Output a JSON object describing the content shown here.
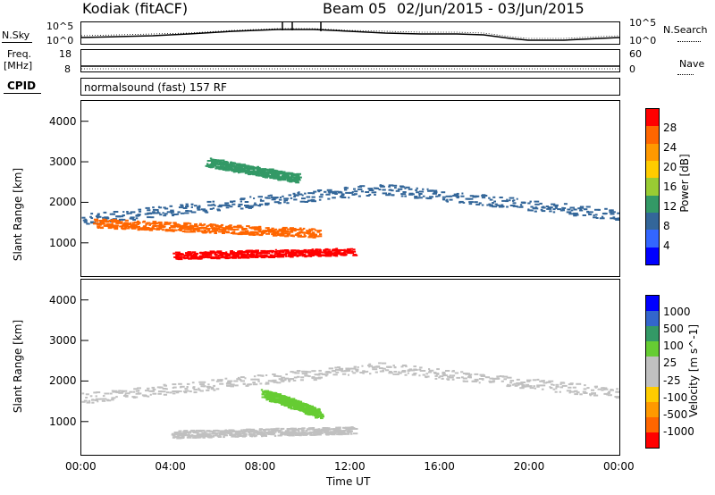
{
  "header": {
    "radar": "Kodiak (fitACF)",
    "beam": "Beam 05",
    "dates": "02/Jun/2015 - 03/Jun/2015"
  },
  "strip_labels": {
    "nsky": "N.Sky",
    "nsearch": "N.Search",
    "freq_top": "Freq.",
    "freq_unit": "[MHz]",
    "nave": "Nave",
    "cpid": "CPID",
    "cpid_value": "normalsound (fast) 157 RF",
    "noise_ticks_left": [
      "10^5",
      "10^0"
    ],
    "noise_ticks_right": [
      "10^5",
      "10^0"
    ],
    "freq_ticks_left": [
      "18",
      "8"
    ],
    "freq_ticks_right": [
      "60",
      "0"
    ]
  },
  "chart_data": [
    {
      "type": "heatmap",
      "panel": "power",
      "ylabel": "Slant Range [km]",
      "ylim": [
        180,
        4500
      ],
      "yticks": [
        "4000",
        "3000",
        "2000",
        "1000"
      ],
      "xlim": [
        0,
        24
      ],
      "colorbar_label": "Power [dB]",
      "colorbar_ticks": [
        "28",
        "24",
        "20",
        "16",
        "12",
        "8",
        "4"
      ],
      "colorbar_colors": [
        "#ff0000",
        "#ff6600",
        "#ff9900",
        "#ffcc00",
        "#99cc33",
        "#339966",
        "#336699",
        "#3366ff",
        "#0000ff"
      ],
      "regions": [
        {
          "band": "main-F",
          "t0": 0,
          "t1": 24,
          "r_start": 1600,
          "r_mid": 2350,
          "r_end": 1550,
          "color": "#336699"
        },
        {
          "band": "inner",
          "t0": 0.5,
          "t1": 10.5,
          "r_start": 1500,
          "r_end": 1250,
          "color": "#ff6600"
        },
        {
          "band": "E-region",
          "t0": 4,
          "t1": 12,
          "r_start": 700,
          "r_end": 800,
          "color": "#ff0000"
        },
        {
          "band": "upper-patch",
          "t0": 5.5,
          "t1": 9.5,
          "r_start": 3000,
          "r_end": 2600,
          "color": "#339966"
        }
      ]
    },
    {
      "type": "heatmap",
      "panel": "velocity",
      "ylabel": "Slant Range [km]",
      "ylim": [
        180,
        4500
      ],
      "yticks": [
        "4000",
        "3000",
        "2000",
        "1000"
      ],
      "xlim": [
        0,
        24
      ],
      "xlabel": "Time UT",
      "xticks": [
        "00:00",
        "04:00",
        "08:00",
        "12:00",
        "16:00",
        "20:00",
        "00:00"
      ],
      "colorbar_label": "Velocity [m s^-1]",
      "colorbar_ticks": [
        "1000",
        "500",
        "100",
        "25",
        "-25",
        "-100",
        "-500",
        "-1000"
      ],
      "colorbar_colors": [
        "#0000ff",
        "#3366cc",
        "#339966",
        "#66cc33",
        "#c0c0c0",
        "#c0c0c0",
        "#ffcc00",
        "#ff9900",
        "#ff6600",
        "#ff0000"
      ],
      "regions": [
        {
          "band": "main-F",
          "t0": 0,
          "t1": 24,
          "r_start": 1600,
          "r_mid": 2350,
          "r_end": 1550,
          "color": "#c0c0c0"
        },
        {
          "band": "green-patch",
          "t0": 8,
          "t1": 10.5,
          "r_start": 1700,
          "r_end": 1200,
          "color": "#66cc33"
        },
        {
          "band": "E-region",
          "t0": 4,
          "t1": 12,
          "r_start": 700,
          "r_end": 800,
          "color": "#c0c0c0"
        }
      ]
    }
  ]
}
